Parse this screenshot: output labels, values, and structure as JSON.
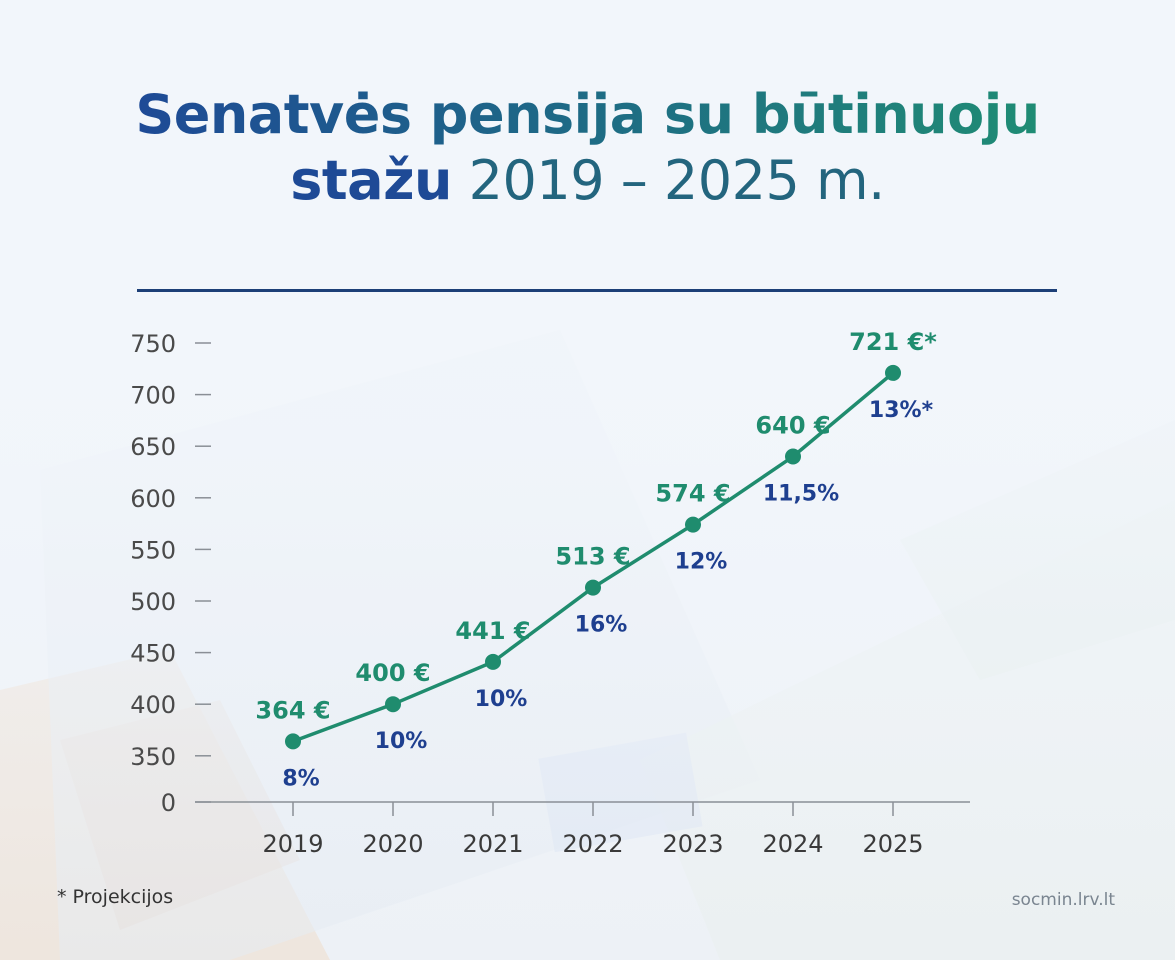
{
  "title": {
    "line1": "Senatvės pensija su būtinuoju",
    "line2_bold": "stažu",
    "line2_years": "2019 – 2025 m."
  },
  "footnote": "* Projekcijos",
  "source": "socmin.lrv.lt",
  "colors": {
    "line": "#1f8c6e",
    "value_label": "#1f8c6e",
    "percent_label": "#1e3f8f",
    "title_blue": "#1e4a96",
    "title_green": "#1f8c74"
  },
  "chart_data": {
    "type": "line",
    "categories": [
      "2019",
      "2020",
      "2021",
      "2022",
      "2023",
      "2024",
      "2025"
    ],
    "values": [
      364,
      400,
      441,
      513,
      574,
      640,
      721
    ],
    "value_labels": [
      "364 €",
      "400 €",
      "441 €",
      "513 €",
      "574 €",
      "640 €",
      "721 €*"
    ],
    "growth_labels": [
      "8%",
      "10%",
      "10%",
      "16%",
      "12%",
      "11,5%",
      "13%*"
    ],
    "y_ticks": [
      "0",
      "350",
      "400",
      "450",
      "500",
      "550",
      "600",
      "650",
      "700",
      "750"
    ],
    "y_axis_break": true,
    "ylim": [
      300,
      750
    ],
    "grid": false
  }
}
